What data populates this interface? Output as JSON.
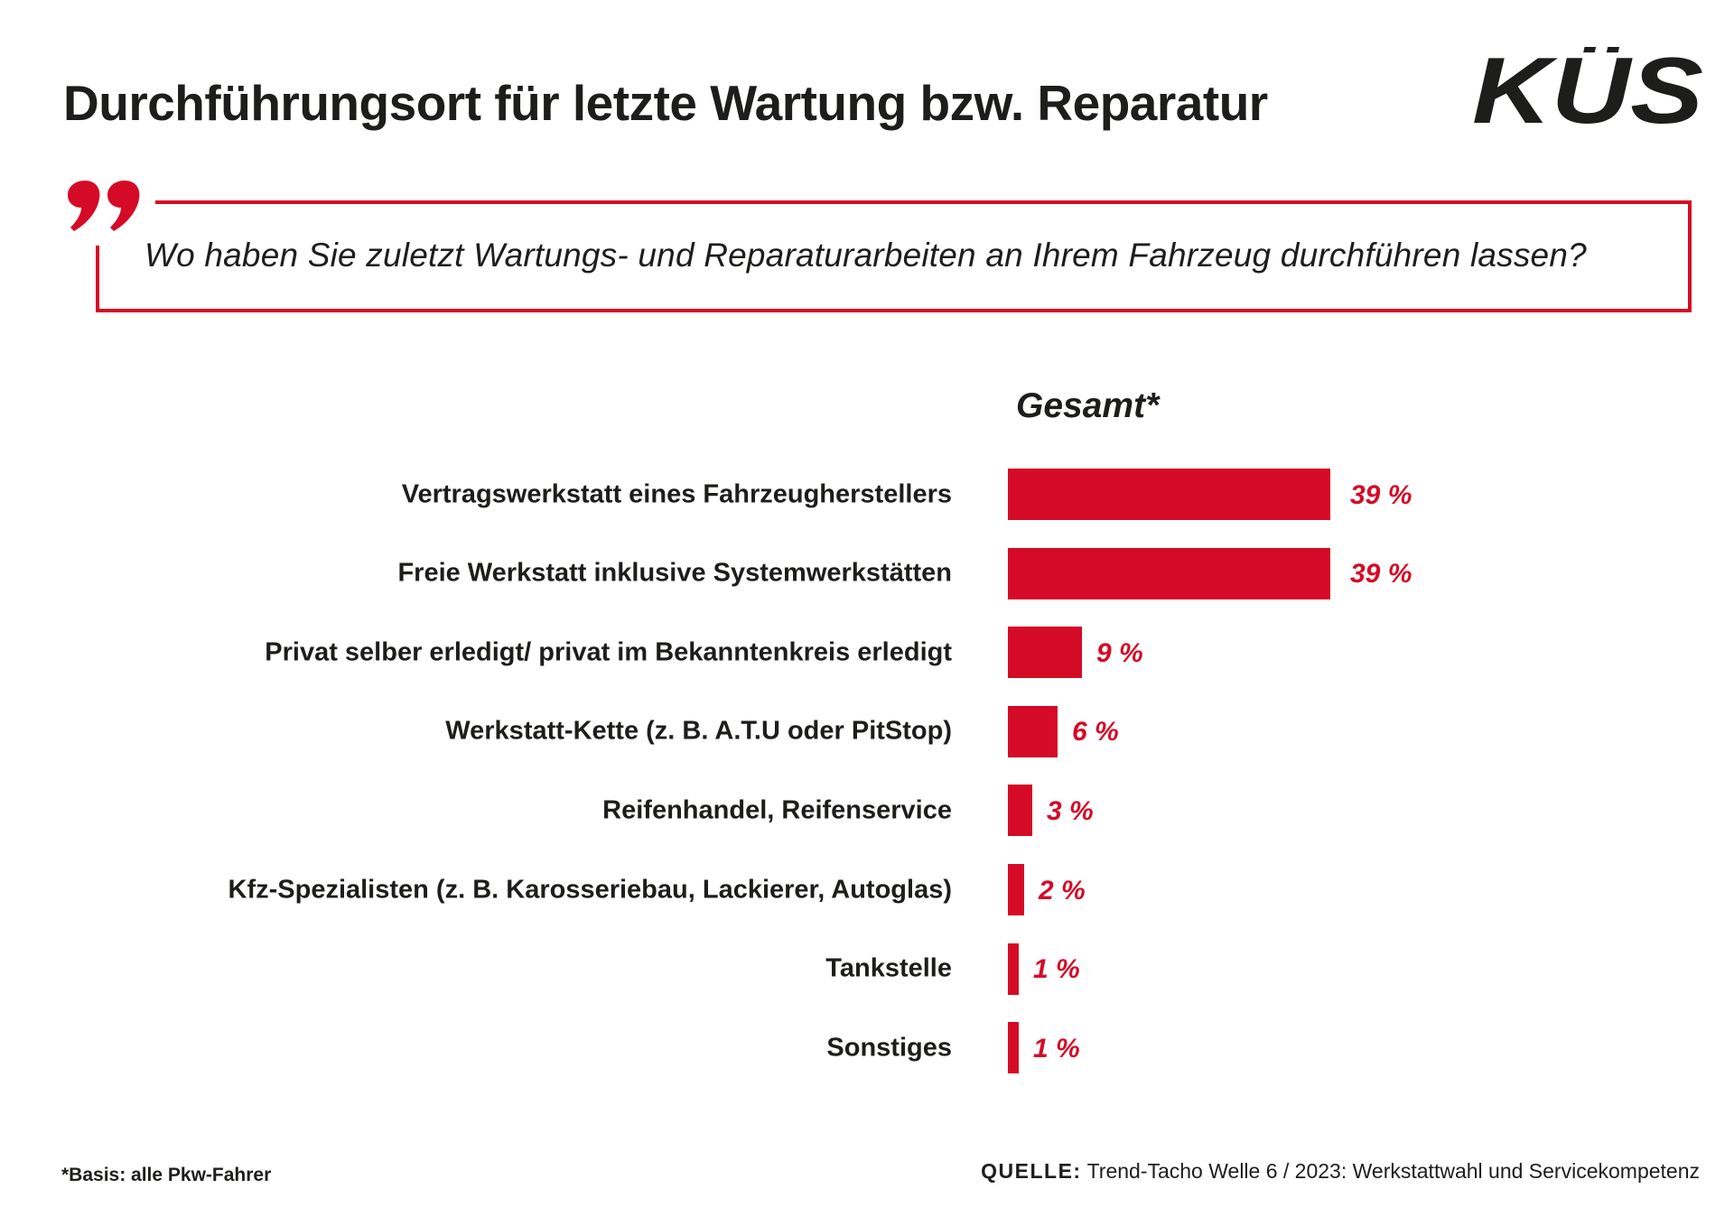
{
  "header": {
    "title": "Durchführungsort für letzte Wartung bzw. Reparatur",
    "logo_text": "KÜS"
  },
  "question": {
    "icon": "quote-icon",
    "text": "Wo haben Sie zuletzt Wartungs- und Reparaturarbeiten an Ihrem Fahrzeug durchführen lassen?"
  },
  "colors": {
    "accent": "#d50a26",
    "text": "#1d1d1b"
  },
  "chart_data": {
    "type": "bar",
    "orientation": "horizontal",
    "title": "Durchführungsort für letzte Wartung bzw. Reparatur",
    "series_title": "Gesamt*",
    "categories": [
      "Vertragswerkstatt eines Fahrzeugherstellers",
      "Freie Werkstatt inklusive Systemwerkstätten",
      "Privat selber erledigt/ privat im Bekanntenkreis erledigt",
      "Werkstatt-Kette (z. B. A.T.U oder PitStop)",
      "Reifenhandel, Reifenservice",
      "Kfz-Spezialisten (z. B. Karosseriebau, Lackierer, Autoglas)",
      "Tankstelle",
      "Sonstiges"
    ],
    "series": [
      {
        "name": "Gesamt*",
        "values": [
          39,
          39,
          9,
          6,
          3,
          2,
          1,
          1
        ]
      }
    ],
    "value_labels": [
      "39 %",
      "39 %",
      "9 %",
      "6 %",
      "3 %",
      "2 %",
      "1 %",
      "1 %"
    ],
    "unit": "%",
    "xlabel": "",
    "ylabel": "",
    "xlim": [
      0,
      39
    ],
    "grid": false,
    "legend": "none"
  },
  "footer": {
    "footnote": "*Basis: alle Pkw-Fahrer",
    "source_label": "QUELLE:",
    "source_text": " Trend-Tacho Welle 6 / 2023: Werkstattwahl und Servicekompetenz"
  }
}
